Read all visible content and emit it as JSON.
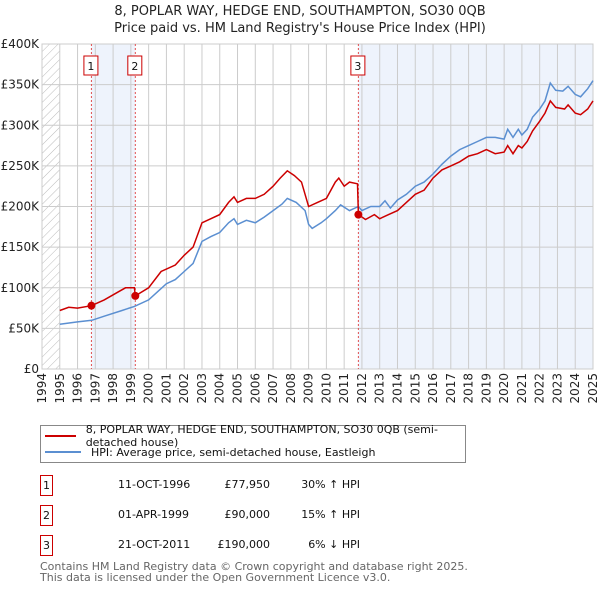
{
  "chart_data": {
    "type": "line",
    "title": "8, POPLAR WAY, HEDGE END, SOUTHAMPTON, SO30 0QB",
    "subtitle": "Price paid vs. HM Land Registry's House Price Index (HPI)",
    "xlim": [
      1994,
      2025
    ],
    "ylim": [
      0,
      400000
    ],
    "y_ticks": [
      {
        "v": 0,
        "label": "£0"
      },
      {
        "v": 50000,
        "label": "£50K"
      },
      {
        "v": 100000,
        "label": "£100K"
      },
      {
        "v": 150000,
        "label": "£150K"
      },
      {
        "v": 200000,
        "label": "£200K"
      },
      {
        "v": 250000,
        "label": "£250K"
      },
      {
        "v": 300000,
        "label": "£300K"
      },
      {
        "v": 350000,
        "label": "£350K"
      },
      {
        "v": 400000,
        "label": "£400K"
      }
    ],
    "x_ticks": [
      "1994",
      "1995",
      "1996",
      "1997",
      "1998",
      "1999",
      "2000",
      "2001",
      "2002",
      "2003",
      "2004",
      "2005",
      "2006",
      "2007",
      "2008",
      "2009",
      "2010",
      "2011",
      "2012",
      "2013",
      "2014",
      "2015",
      "2016",
      "2017",
      "2018",
      "2019",
      "2020",
      "2021",
      "2022",
      "2023",
      "2024",
      "2025"
    ],
    "grid": true,
    "series": [
      {
        "name": "8, POPLAR WAY, HEDGE END, SOUTHAMPTON, SO30 0QB (semi-detached house)",
        "color": "#cc0000",
        "x": [
          1995,
          1995.5,
          1996,
          1996.78,
          1997.5,
          1998.3,
          1998.7,
          1999.2,
          1999.25,
          2000,
          2000.7,
          2001.5,
          2002,
          2002.5,
          2003,
          2003.5,
          2004,
          2004.5,
          2004.8,
          2005,
          2005.5,
          2006,
          2006.5,
          2007,
          2007.4,
          2007.8,
          2008.2,
          2008.6,
          2009,
          2009.5,
          2010,
          2010.5,
          2010.7,
          2011,
          2011.3,
          2011.75,
          2011.8,
          2012.2,
          2012.7,
          2013,
          2013.5,
          2014,
          2014.5,
          2015,
          2015.5,
          2016,
          2016.5,
          2017,
          2017.5,
          2018,
          2018.5,
          2019,
          2019.5,
          2020,
          2020.2,
          2020.5,
          2020.8,
          2021,
          2021.3,
          2021.6,
          2022,
          2022.3,
          2022.6,
          2022.9,
          2023.4,
          2023.6,
          2024,
          2024.3,
          2024.7,
          2025
        ],
        "y": [
          72000,
          76000,
          75000,
          77950,
          85000,
          95000,
          100000,
          100000,
          90000,
          100000,
          120000,
          128000,
          140000,
          150000,
          180000,
          185000,
          190000,
          205000,
          212000,
          205000,
          210000,
          210000,
          215000,
          225000,
          235000,
          244000,
          238000,
          230000,
          200000,
          205000,
          210000,
          230000,
          235000,
          225000,
          230000,
          228000,
          190000,
          184000,
          190000,
          185000,
          190000,
          195000,
          205000,
          215000,
          220000,
          235000,
          245000,
          250000,
          255000,
          262000,
          265000,
          270000,
          265000,
          267000,
          275000,
          265000,
          275000,
          272000,
          280000,
          293000,
          305000,
          315000,
          330000,
          322000,
          320000,
          325000,
          315000,
          313000,
          320000,
          330000
        ]
      },
      {
        "name": "HPI: Average price, semi-detached house, Eastleigh",
        "color": "#5b8fd1",
        "x": [
          1995,
          1996,
          1996.8,
          1997.5,
          1998.5,
          1999.2,
          2000,
          2000.5,
          2001,
          2001.5,
          2002,
          2002.5,
          2003,
          2003.5,
          2004,
          2004.5,
          2004.8,
          2005,
          2005.5,
          2006,
          2006.5,
          2007,
          2007.5,
          2007.8,
          2008.3,
          2008.8,
          2009,
          2009.2,
          2009.7,
          2010,
          2010.5,
          2010.8,
          2011.3,
          2011.8,
          2012,
          2012.5,
          2013,
          2013.3,
          2013.6,
          2014,
          2014.5,
          2015,
          2015.5,
          2016,
          2016.5,
          2017,
          2017.5,
          2018,
          2018.5,
          2019,
          2019.5,
          2020,
          2020.2,
          2020.5,
          2020.8,
          2021,
          2021.3,
          2021.6,
          2022,
          2022.3,
          2022.6,
          2022.9,
          2023.3,
          2023.6,
          2024,
          2024.3,
          2024.7,
          2025
        ],
        "y": [
          55000,
          58000,
          60000,
          65000,
          72000,
          77000,
          85000,
          95000,
          105000,
          110000,
          120000,
          130000,
          157000,
          163000,
          168000,
          180000,
          185000,
          178000,
          183000,
          180000,
          187000,
          195000,
          203000,
          210000,
          205000,
          195000,
          178000,
          173000,
          180000,
          185000,
          195000,
          202000,
          195000,
          200000,
          195000,
          200000,
          200000,
          207000,
          198000,
          208000,
          215000,
          225000,
          230000,
          240000,
          252000,
          262000,
          270000,
          275000,
          280000,
          285000,
          285000,
          283000,
          295000,
          285000,
          295000,
          288000,
          295000,
          310000,
          320000,
          330000,
          352000,
          343000,
          342000,
          348000,
          338000,
          335000,
          345000,
          355000
        ]
      }
    ],
    "sales": [
      {
        "n": "1",
        "x": 1996.78,
        "y": 77950,
        "date": "11-OCT-1996",
        "price": "£77,950",
        "hpi": "30% ↑ HPI"
      },
      {
        "n": "2",
        "x": 1999.25,
        "y": 90000,
        "date": "01-APR-1999",
        "price": "£90,000",
        "hpi": "15% ↑ HPI"
      },
      {
        "n": "3",
        "x": 2011.8,
        "y": 190000,
        "date": "21-OCT-2011",
        "price": "£190,000",
        "hpi": "6% ↓ HPI"
      }
    ]
  },
  "footer": [
    "Contains HM Land Registry data © Crown copyright and database right 2025.",
    "This data is licensed under the Open Government Licence v3.0."
  ]
}
